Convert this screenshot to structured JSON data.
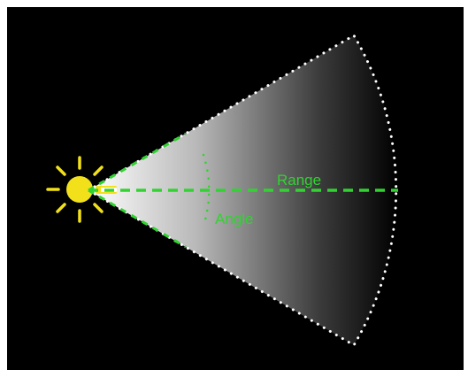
{
  "diagram": {
    "labels": {
      "range": "Range",
      "angle": "Angle"
    },
    "colors": {
      "background": "#000000",
      "frame": "#ffffff",
      "sun": "#f2e11a",
      "annotation": "#31d331",
      "beam_dots": "#ffffff",
      "beam_light": "#ffffff",
      "beam_dark": "#000000"
    },
    "icons": {
      "light_source": "sun-icon",
      "spot_light_cone": "cone-shape"
    }
  }
}
